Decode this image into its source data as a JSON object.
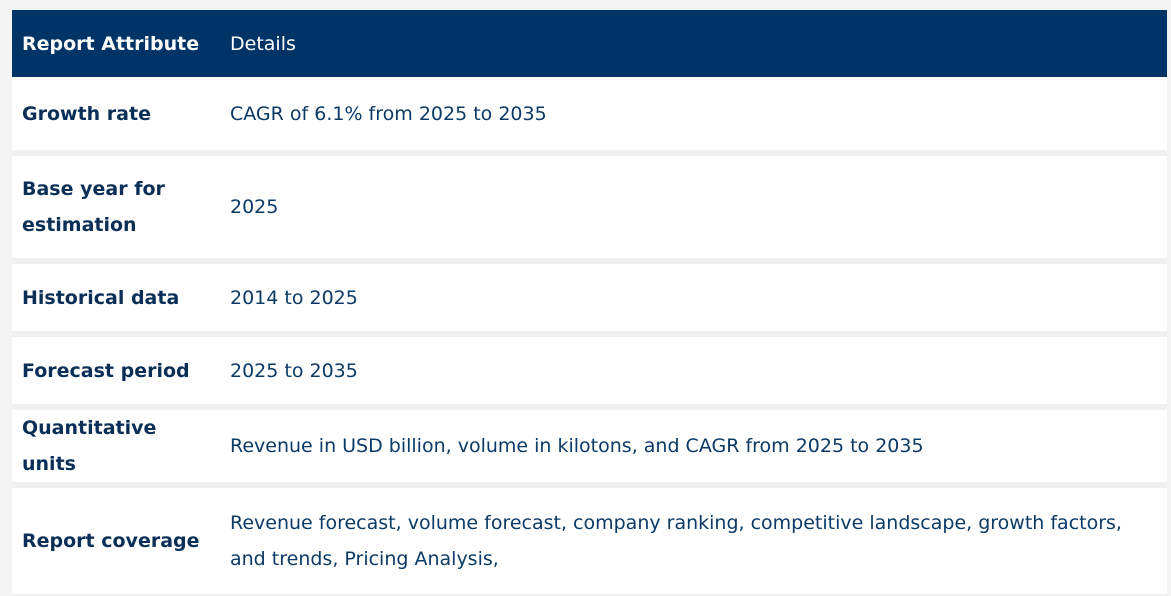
{
  "table": {
    "headers": [
      "Report Attribute",
      "Details"
    ],
    "rows": [
      {
        "attribute": "Growth rate",
        "details": "CAGR of 6.1% from 2025 to 2035"
      },
      {
        "attribute": "Base year for estimation",
        "details": "2025"
      },
      {
        "attribute": "Historical data",
        "details": "2014 to 2025"
      },
      {
        "attribute": "Forecast period",
        "details": "2025 to 2035"
      },
      {
        "attribute": "Quantitative units",
        "details": "Revenue in USD billion, volume in kilotons, and CAGR from 2025 to 2035"
      },
      {
        "attribute": "Report coverage",
        "details": "Revenue forecast, volume forecast, company ranking, competitive landscape, growth factors, and trends, Pricing Analysis,"
      }
    ]
  },
  "colors": {
    "header_background": "#003366",
    "header_text": "#ffffff",
    "cell_text": "#0b3a66",
    "row_background": "#ffffff",
    "row_separator": "#f0f0f0"
  }
}
